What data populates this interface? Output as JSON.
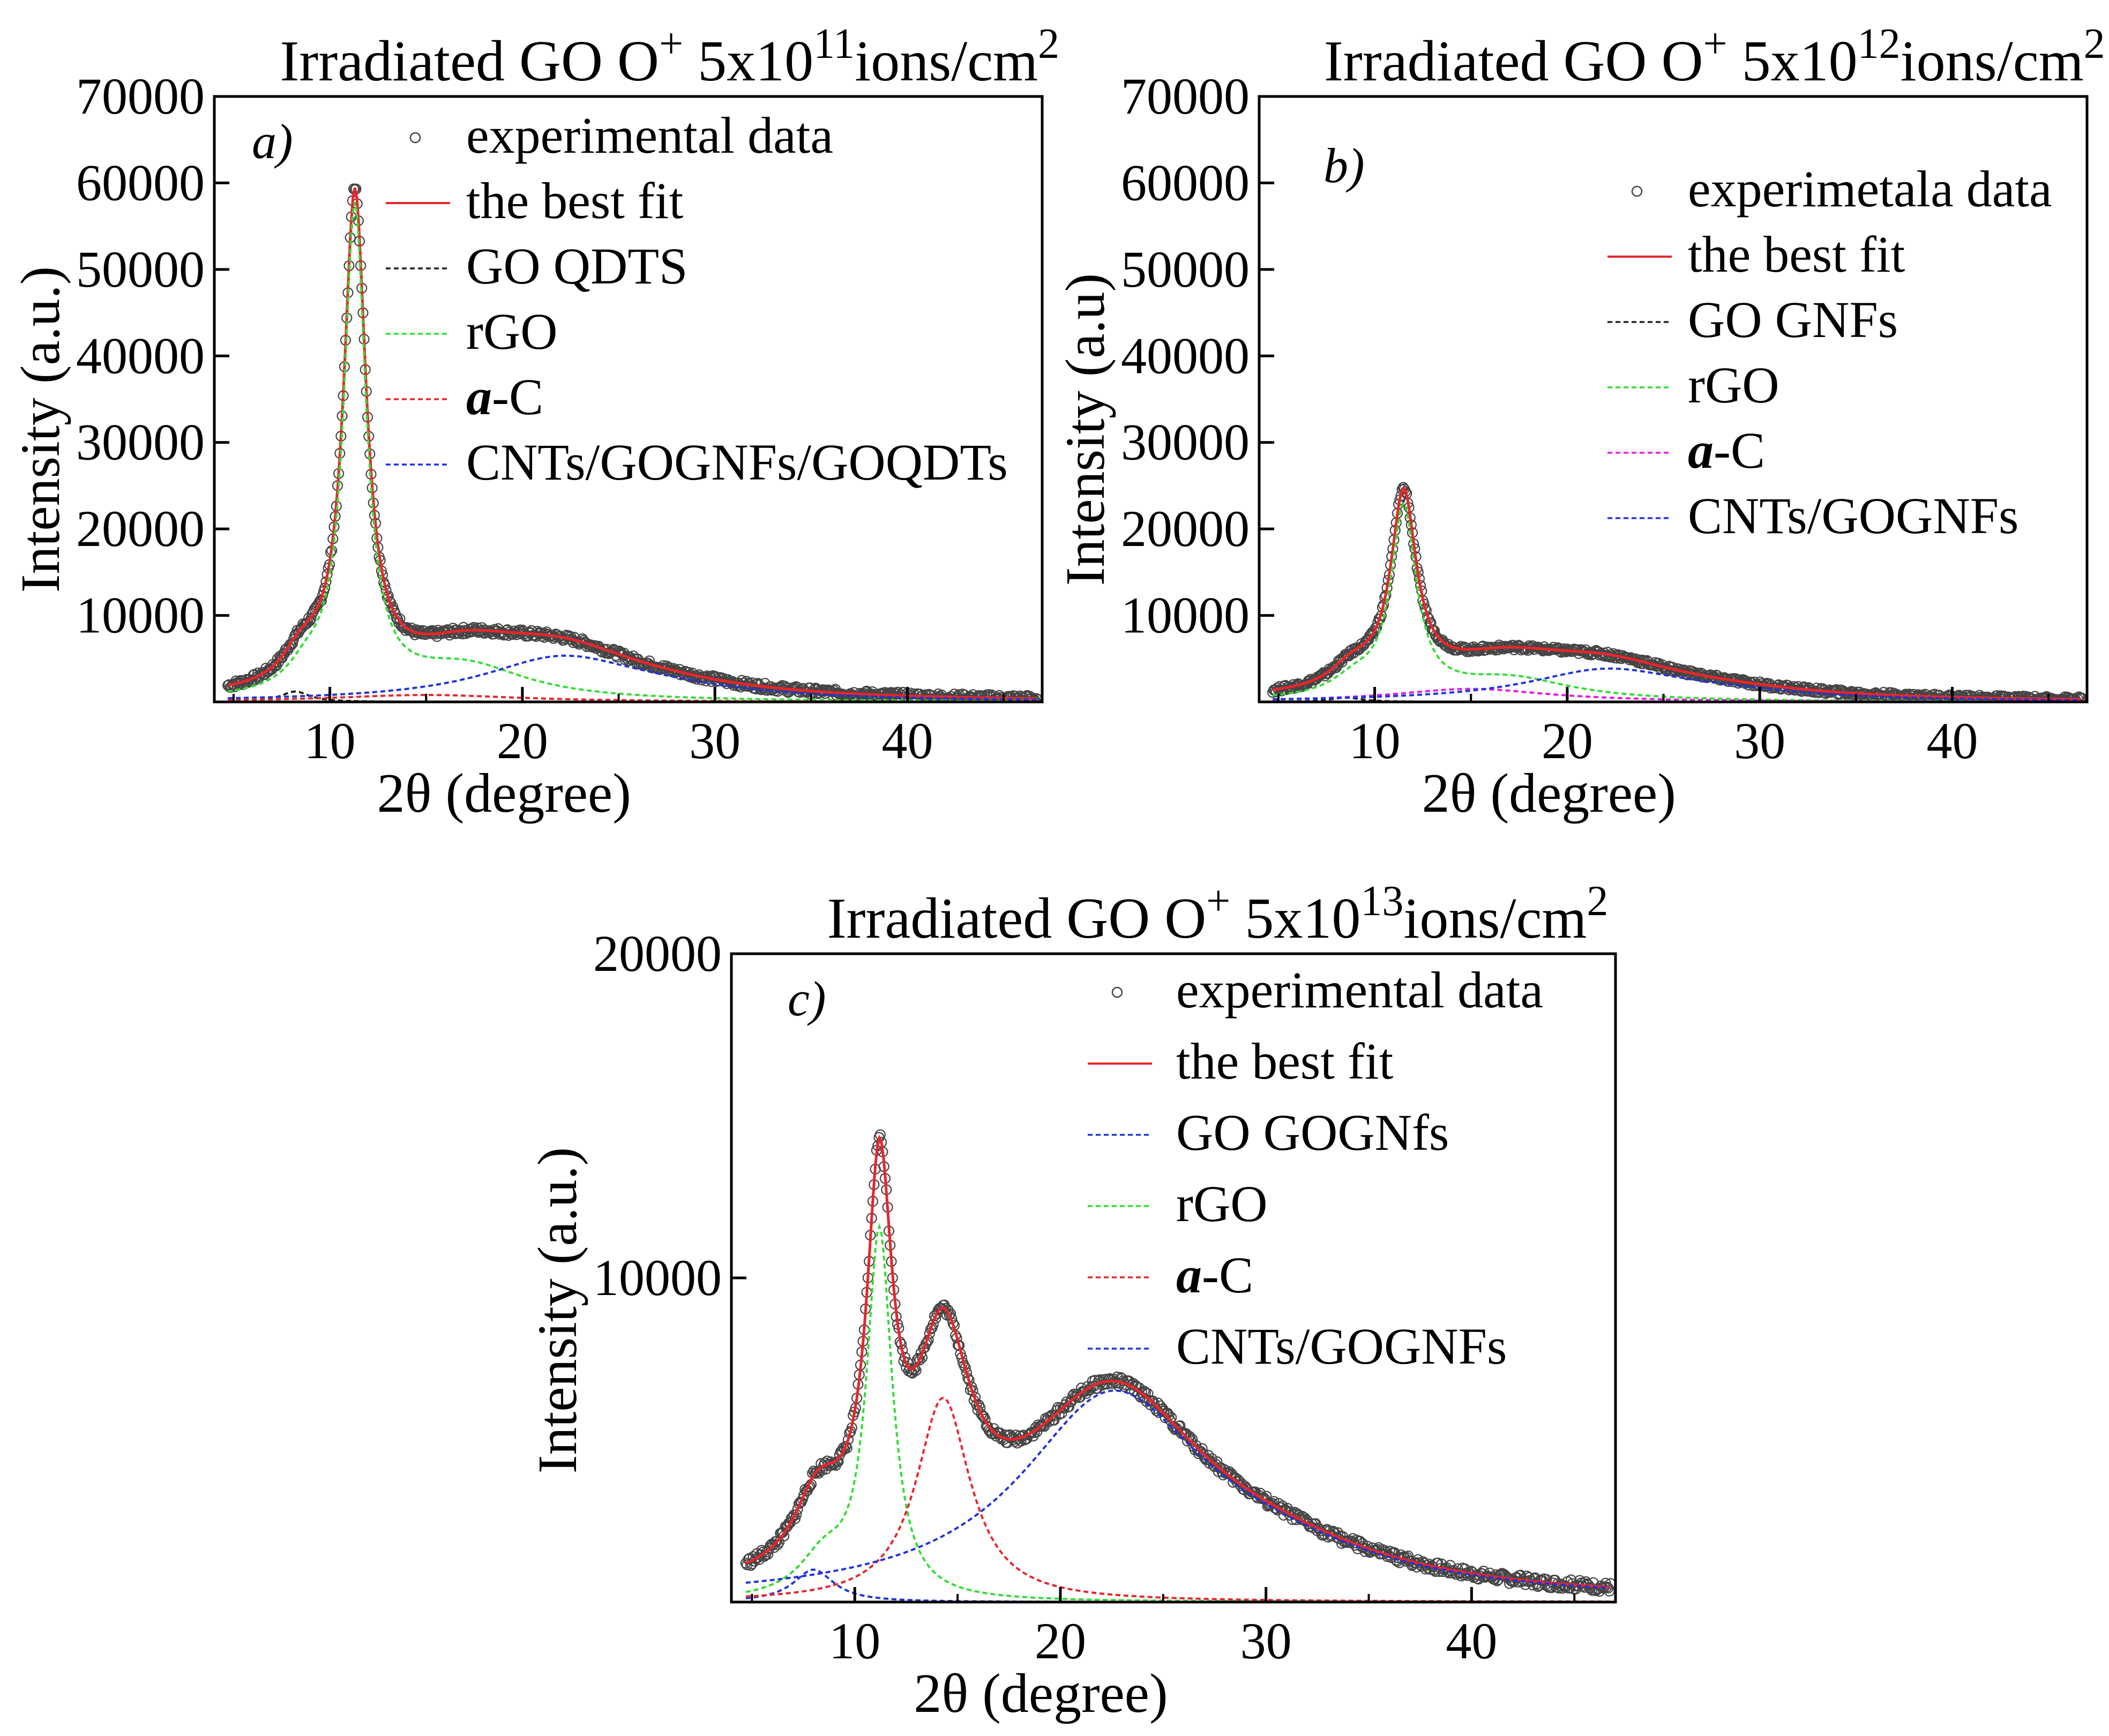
{
  "chart_data": [
    {
      "panel": "a)",
      "type": "line",
      "title": {
        "prefix": "Irradiated  GO O",
        "sup1": "+",
        "mid": " 5x10",
        "sup2": "11",
        "suffix": "ions/cm",
        "sup3": "2"
      },
      "xlabel": "2θ (degree)",
      "ylabel": "Intensity (a.u.)",
      "xlim": [
        4,
        47
      ],
      "ylim": [
        0,
        70000
      ],
      "xticks": [
        10,
        20,
        30,
        40
      ],
      "yticks": [
        10000,
        20000,
        30000,
        40000,
        50000,
        60000,
        70000
      ],
      "legend_position": "top-right",
      "noise": 400,
      "series": [
        {
          "name": "experimental data",
          "kind": "markers",
          "color": "#444444",
          "peaks": "sum"
        },
        {
          "name": "the best fit",
          "kind": "solid",
          "color": "#e8262b",
          "peaks": "sum"
        },
        {
          "name": "GO QDTS",
          "kind": "dashed",
          "color": "#222222",
          "peaks": [
            [
              8.2,
              1200,
              0.9
            ]
          ]
        },
        {
          "name": "rGO",
          "kind": "dashed",
          "color": "#33dd33",
          "peaks": [
            [
              11.3,
              56000,
              0.7
            ],
            [
              8.8,
              2500,
              1.2
            ],
            [
              17,
              4000,
              4
            ]
          ]
        },
        {
          "name": "a-C",
          "kind": "dashed",
          "color": "#e8262b",
          "peaks": [
            [
              15,
              800,
              6
            ]
          ]
        },
        {
          "name": "CNTs/GOGNFs/GOQDTs",
          "kind": "dashed",
          "color": "#2233dd",
          "peaks": [
            [
              22,
              4800,
              5
            ],
            [
              27,
              900,
              6
            ]
          ]
        }
      ]
    },
    {
      "panel": "b)",
      "type": "line",
      "title": {
        "prefix": "Irradiated  GO O",
        "sup1": "+",
        "mid": " 5x10",
        "sup2": "12",
        "suffix": "ions/cm",
        "sup3": "2"
      },
      "xlabel": "2θ (degree)",
      "ylabel": "Intensity (a.u)",
      "xlim": [
        4,
        47
      ],
      "ylim": [
        0,
        70000
      ],
      "xticks": [
        10,
        20,
        30,
        40
      ],
      "yticks": [
        10000,
        20000,
        30000,
        40000,
        50000,
        60000,
        70000
      ],
      "legend_position": "top-right",
      "noise": 300,
      "series": [
        {
          "name": "experimetala data",
          "kind": "markers",
          "color": "#444444",
          "peaks": "sum"
        },
        {
          "name": "the best fit",
          "kind": "solid",
          "color": "#e8262b",
          "peaks": "sum"
        },
        {
          "name": "GO GNFs",
          "kind": "dashed",
          "color": "#222222",
          "peaks": [
            [
              8.5,
              500,
              1
            ]
          ]
        },
        {
          "name": "rGO",
          "kind": "dashed",
          "color": "#33dd33",
          "peaks": [
            [
              11.5,
              21500,
              0.8
            ],
            [
              9,
              2000,
              1.5
            ],
            [
              17,
              2600,
              4
            ]
          ]
        },
        {
          "name": "a-C",
          "kind": "dashed",
          "color": "#e020e0",
          "peaks": [
            [
              15,
              1500,
              5
            ]
          ]
        },
        {
          "name": "CNTs/GOGNFs",
          "kind": "dashed",
          "color": "#2233dd",
          "peaks": [
            [
              22,
              3500,
              5
            ],
            [
              28,
              700,
              6
            ]
          ]
        }
      ]
    },
    {
      "panel": "c)",
      "type": "line",
      "title": {
        "prefix": "Irradiated  GO  O",
        "sup1": "+",
        "mid": " 5x10",
        "sup2": "13",
        "suffix": "ions/cm",
        "sup3": "2"
      },
      "xlabel": "2θ (degree)",
      "ylabel": "Intensity (a.u.)",
      "xlim": [
        4,
        47
      ],
      "ylim": [
        0,
        20000
      ],
      "xticks": [
        10,
        20,
        30,
        40
      ],
      "yticks": [
        10000,
        20000
      ],
      "legend_position": "top-right",
      "noise": 150,
      "series": [
        {
          "name": "experimental data",
          "kind": "markers",
          "color": "#444444",
          "peaks": "sum"
        },
        {
          "name": "the best fit",
          "kind": "solid",
          "color": "#e8262b",
          "peaks": "sum"
        },
        {
          "name": "GO GOGNfs",
          "kind": "dashed",
          "color": "#2233dd",
          "peaks": [
            [
              8,
              1000,
              1.2
            ]
          ]
        },
        {
          "name": "rGO",
          "kind": "dashed",
          "color": "#33dd33",
          "peaks": [
            [
              11.2,
              11300,
              0.75
            ],
            [
              8.5,
              1200,
              1.5
            ]
          ]
        },
        {
          "name": "a-C",
          "kind": "dashed",
          "color": "#e8262b",
          "peaks": [
            [
              14.3,
              6300,
              1.6
            ]
          ]
        },
        {
          "name": "CNTs/GOGNFs",
          "kind": "dashed",
          "color": "#2233dd",
          "peaks": [
            [
              22.5,
              6100,
              5.5
            ],
            [
              30,
              900,
              7
            ]
          ]
        }
      ]
    }
  ]
}
